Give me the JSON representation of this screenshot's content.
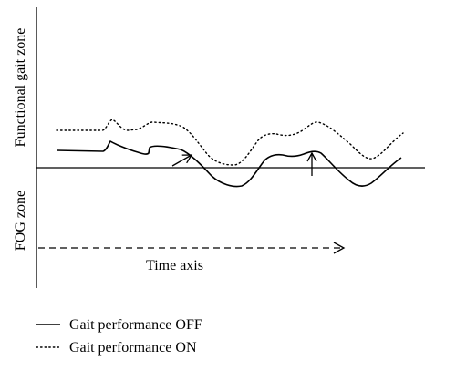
{
  "zones": {
    "upper_label": "Functional gait zone",
    "lower_label": "FOG zone"
  },
  "time_axis": {
    "label": "Time axis"
  },
  "legend": {
    "off_label": "Gait performance OFF",
    "on_label": "Gait performance ON"
  },
  "series": {
    "off_style": "solid",
    "on_style": "dotted"
  },
  "colors": {
    "stroke": "#000000",
    "background": "#ffffff"
  }
}
